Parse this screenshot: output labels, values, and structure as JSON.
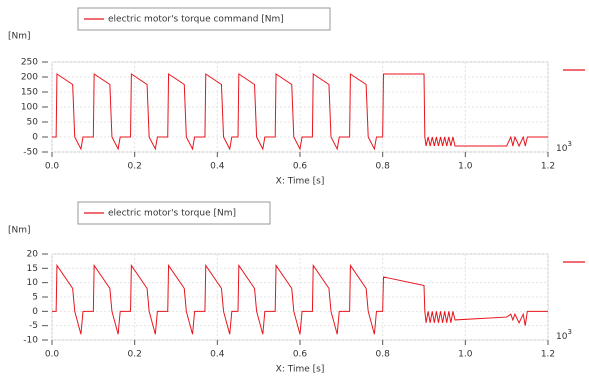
{
  "chart_data": [
    {
      "type": "line",
      "y_label": "[Nm]",
      "x_label": "X: Time [s]",
      "annotation": "10",
      "annotation_exponent": "3",
      "grid": true,
      "xlim": [
        0,
        1.2
      ],
      "xticks": [
        {
          "value": 0,
          "label": "0.0"
        },
        0.2,
        0.4,
        0.6,
        0.8,
        {
          "value": 1,
          "label": "1.0"
        },
        1.2
      ],
      "ylim": [
        -50,
        250
      ],
      "yticks": [
        -50,
        0,
        50,
        100,
        150,
        200,
        250
      ],
      "x": [
        0,
        0.01,
        0.012,
        0.05,
        0.055,
        0.07,
        0.075,
        0.1,
        0.102,
        0.14,
        0.145,
        0.16,
        0.165,
        0.19,
        0.192,
        0.23,
        0.235,
        0.25,
        0.255,
        0.28,
        0.282,
        0.32,
        0.325,
        0.34,
        0.345,
        0.37,
        0.372,
        0.41,
        0.415,
        0.43,
        0.435,
        0.45,
        0.452,
        0.49,
        0.495,
        0.51,
        0.515,
        0.54,
        0.542,
        0.58,
        0.585,
        0.6,
        0.605,
        0.63,
        0.632,
        0.67,
        0.675,
        0.69,
        0.695,
        0.72,
        0.722,
        0.76,
        0.765,
        0.78,
        0.785,
        0.8,
        0.802,
        0.9,
        0.902,
        0.905,
        0.91,
        0.915,
        0.92,
        0.925,
        0.93,
        0.935,
        0.94,
        0.945,
        0.95,
        0.955,
        0.96,
        0.965,
        0.97,
        0.975,
        1.1,
        1.11,
        1.115,
        1.12,
        1.13,
        1.14,
        1.145,
        1.15,
        1.2
      ],
      "series": [
        {
          "name": "electric motor's torque command [Nm]",
          "color": "#e8141c",
          "values": [
            0,
            0,
            210,
            175,
            0,
            -40,
            0,
            0,
            210,
            175,
            0,
            -40,
            0,
            0,
            210,
            175,
            0,
            -40,
            0,
            0,
            210,
            175,
            0,
            -40,
            0,
            0,
            210,
            175,
            0,
            -40,
            0,
            0,
            210,
            175,
            0,
            -40,
            0,
            0,
            210,
            175,
            0,
            -40,
            0,
            0,
            210,
            175,
            0,
            -40,
            0,
            0,
            210,
            175,
            0,
            -40,
            0,
            0,
            210,
            210,
            0,
            -30,
            0,
            -30,
            0,
            -30,
            0,
            -30,
            0,
            -30,
            0,
            -30,
            0,
            -30,
            0,
            -30,
            -30,
            0,
            -30,
            0,
            -30,
            0,
            -30,
            0,
            0
          ]
        }
      ]
    },
    {
      "type": "line",
      "y_label": "[Nm]",
      "x_label": "X: Time [s]",
      "annotation": "10",
      "annotation_exponent": "3",
      "grid": true,
      "xlim": [
        0,
        1.2
      ],
      "xticks": [
        {
          "value": 0,
          "label": "0.0"
        },
        0.2,
        0.4,
        0.6,
        0.8,
        {
          "value": 1,
          "label": "1.0"
        },
        1.2
      ],
      "ylim": [
        -10,
        20
      ],
      "yticks": [
        -10,
        -5,
        0,
        5,
        10,
        15,
        20
      ],
      "x": [
        0,
        0.01,
        0.012,
        0.05,
        0.055,
        0.07,
        0.075,
        0.1,
        0.102,
        0.14,
        0.145,
        0.16,
        0.165,
        0.19,
        0.192,
        0.23,
        0.235,
        0.25,
        0.255,
        0.28,
        0.282,
        0.32,
        0.325,
        0.34,
        0.345,
        0.37,
        0.372,
        0.41,
        0.415,
        0.43,
        0.435,
        0.45,
        0.452,
        0.49,
        0.495,
        0.51,
        0.515,
        0.54,
        0.542,
        0.58,
        0.585,
        0.6,
        0.605,
        0.63,
        0.632,
        0.67,
        0.675,
        0.69,
        0.695,
        0.72,
        0.722,
        0.76,
        0.765,
        0.78,
        0.785,
        0.8,
        0.802,
        0.9,
        0.902,
        0.905,
        0.91,
        0.915,
        0.92,
        0.925,
        0.93,
        0.935,
        0.94,
        0.945,
        0.95,
        0.955,
        0.96,
        0.965,
        0.97,
        0.975,
        1.1,
        1.11,
        1.115,
        1.12,
        1.13,
        1.14,
        1.145,
        1.15,
        1.2
      ],
      "series": [
        {
          "name": "electric motor's torque [Nm]",
          "color": "#e8141c",
          "values": [
            0,
            0,
            16,
            8,
            0,
            -8,
            0,
            0,
            16,
            8,
            0,
            -8,
            0,
            0,
            16,
            8,
            0,
            -8,
            0,
            0,
            16,
            8,
            0,
            -8,
            0,
            0,
            16,
            8,
            0,
            -8,
            0,
            0,
            16,
            8,
            0,
            -8,
            0,
            0,
            16,
            8,
            0,
            -8,
            0,
            0,
            16,
            8,
            0,
            -8,
            0,
            0,
            16,
            8,
            0,
            -8,
            0,
            0,
            12,
            9,
            0,
            -4,
            0,
            -4,
            0,
            -4,
            0,
            -4,
            0,
            -4,
            0,
            -4,
            0,
            -4,
            0,
            -3,
            -2,
            -1,
            -3,
            -1,
            -4,
            -1,
            -5,
            0,
            0
          ]
        }
      ]
    }
  ]
}
